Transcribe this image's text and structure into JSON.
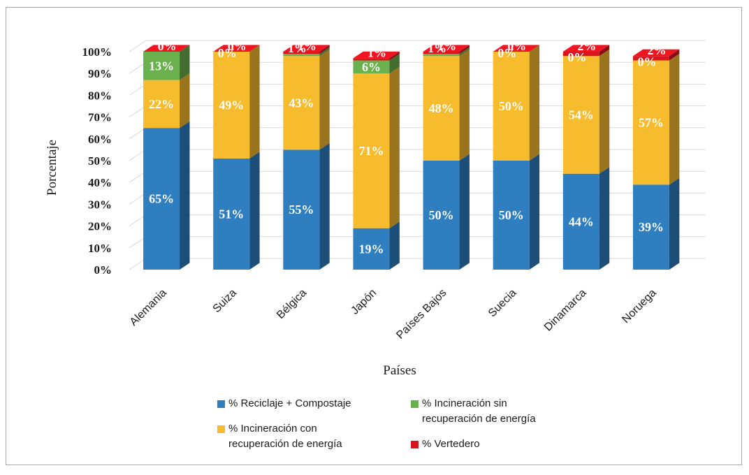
{
  "chart_data": {
    "type": "bar",
    "stacked": true,
    "categories": [
      "Alemania",
      "Suiza",
      "Bélgica",
      "Japón",
      "Países Bajos",
      "Suecia",
      "Dinamarca",
      "Noruega"
    ],
    "series": [
      {
        "name": "% Reciclaje + Compostaje",
        "color": "#2e7ec0",
        "values": [
          65,
          51,
          55,
          19,
          50,
          50,
          44,
          39
        ],
        "labels": [
          "65%",
          "51%",
          "55%",
          "19%",
          "50%",
          "50%",
          "44%",
          "39%"
        ]
      },
      {
        "name": "% Incineración con recuperación de energía",
        "color": "#f7bb2e",
        "values": [
          22,
          49,
          43,
          71,
          48,
          50,
          54,
          57
        ],
        "labels": [
          "22%",
          "49%",
          "43%",
          "71%",
          "48%",
          "50%",
          "54%",
          "57%"
        ]
      },
      {
        "name": "% Incineración sin recuperación de energía",
        "color": "#6ab04c",
        "values": [
          13,
          0,
          1,
          6,
          1,
          0,
          0,
          0
        ],
        "labels": [
          "13%",
          "0%",
          "1%",
          "6%",
          "1%",
          "0%",
          "0%",
          "0%"
        ]
      },
      {
        "name": "% Vertedero",
        "color": "#d9141e",
        "values": [
          0,
          0,
          1,
          1,
          1,
          0,
          2,
          2
        ],
        "labels": [
          "0%",
          "0%",
          "1%",
          "1%",
          "1%",
          "0%",
          "2%",
          "2%"
        ]
      }
    ],
    "xlabel": "Países",
    "ylabel": "Porcentaje",
    "ylim": [
      0,
      100
    ],
    "yticks": [
      "0%",
      "10%",
      "20%",
      "30%",
      "40%",
      "50%",
      "60%",
      "70%",
      "80%",
      "90%",
      "100%"
    ],
    "grid": true,
    "legend_position": "bottom",
    "three_d": true
  },
  "legend": {
    "item1_line1": "% Reciclaje + Compostaje",
    "item2_line1": "% Incineración sin",
    "item2_line2": "recuperación de energía",
    "item3_line1": "% Incineración con",
    "item3_line2": "recuperación de energía",
    "item4_line1": "% Vertedero"
  }
}
